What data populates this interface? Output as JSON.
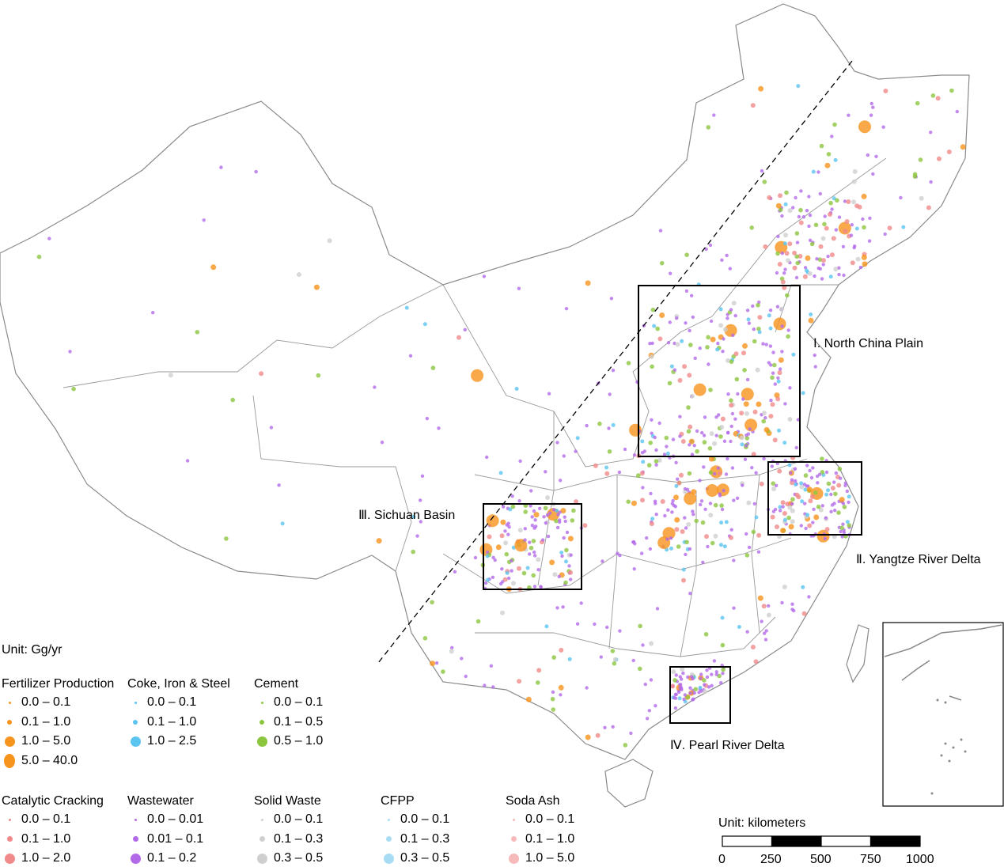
{
  "regions": [
    {
      "label": "Ⅰ. North China Plain"
    },
    {
      "label": "Ⅱ. Yangtze River Delta"
    },
    {
      "label": "Ⅲ. Sichuan Basin"
    },
    {
      "label": "Ⅳ. Pearl River Delta"
    }
  ],
  "legend": {
    "unit": "Unit: Gg/yr",
    "groups": [
      {
        "title": "Fertilizer Production",
        "color": "#f7941d",
        "items": [
          "0.0 – 0.1",
          "0.1 – 1.0",
          "1.0 – 5.0",
          "5.0 – 40.0"
        ]
      },
      {
        "title": "Coke, Iron & Steel",
        "color": "#5bc4f0",
        "items": [
          "0.0 – 0.1",
          "0.1 – 1.0",
          "1.0 – 2.5"
        ]
      },
      {
        "title": "Cement",
        "color": "#8cc63f",
        "items": [
          "0.0 – 0.1",
          "0.1 – 0.5",
          "0.5 – 1.0"
        ]
      },
      {
        "title": "Catalytic Cracking",
        "color": "#f08a8a",
        "items": [
          "0.0 – 0.1",
          "0.1 – 1.0",
          "1.0 – 2.0"
        ]
      },
      {
        "title": "Wastewater",
        "color": "#b36ae8",
        "items": [
          "0.0 – 0.01",
          "0.01 – 0.1",
          "0.1 – 0.2"
        ]
      },
      {
        "title": "Solid Waste",
        "color": "#cfcfcf",
        "items": [
          "0.0 – 0.1",
          "0.1 – 0.3",
          "0.3 – 0.5"
        ]
      },
      {
        "title": "CFPP",
        "color": "#a8dcf5",
        "items": [
          "0.0 – 0.1",
          "0.1 – 0.3",
          "0.3 – 0.5"
        ]
      },
      {
        "title": "Soda Ash",
        "color": "#f7baba",
        "items": [
          "0.0 – 0.1",
          "0.1 – 1.0",
          "1.0 – 5.0"
        ]
      }
    ]
  },
  "scale_bar": {
    "unit": "Unit: kilometers",
    "ticks": [
      "0",
      "250",
      "500",
      "750",
      "1000"
    ]
  }
}
